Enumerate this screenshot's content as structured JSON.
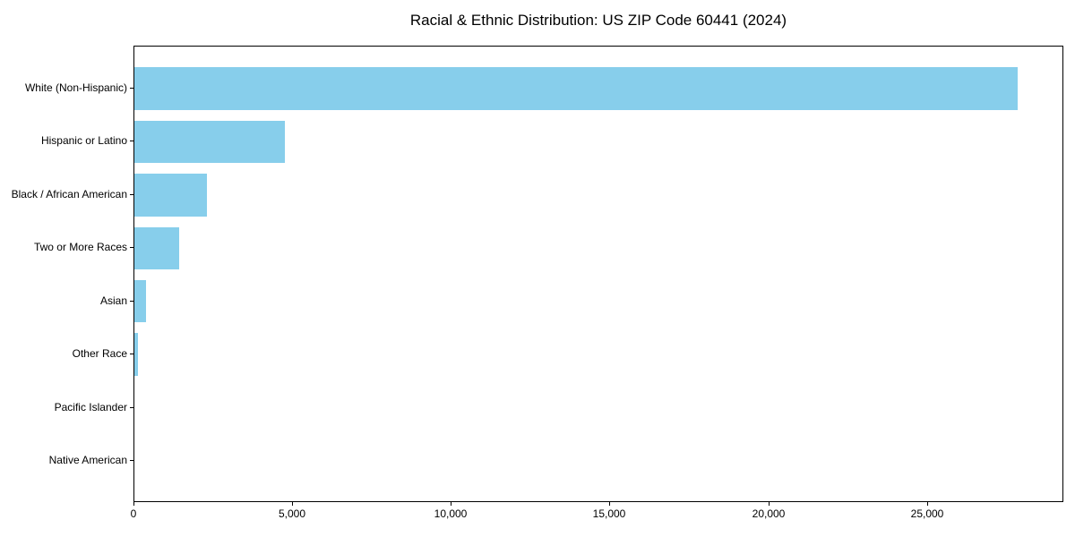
{
  "colors": {
    "bar": "#87CEEB",
    "spine": "#000000",
    "text": "#000000",
    "background": "#ffffff"
  },
  "chart_data": {
    "type": "bar",
    "orientation": "horizontal",
    "title": "Racial & Ethnic Distribution: US ZIP Code 60441 (2024)",
    "categories": [
      "White (Non-Hispanic)",
      "Hispanic or Latino",
      "Black / African American",
      "Two or More Races",
      "Asian",
      "Other Race",
      "Pacific Islander",
      "Native American"
    ],
    "values": [
      27900,
      4740,
      2290,
      1410,
      360,
      110,
      0,
      0
    ],
    "xlabel": "",
    "ylabel": "",
    "xlim": [
      0,
      29300
    ],
    "ylim_pad_units": 0.79,
    "bar_height_units": 0.8,
    "xticks": [
      {
        "value": 0,
        "label": "0"
      },
      {
        "value": 5000,
        "label": "5,000"
      },
      {
        "value": 10000,
        "label": "10,000"
      },
      {
        "value": 15000,
        "label": "15,000"
      },
      {
        "value": 20000,
        "label": "20,000"
      },
      {
        "value": 25000,
        "label": "25,000"
      }
    ],
    "grid": false,
    "legend": false
  }
}
